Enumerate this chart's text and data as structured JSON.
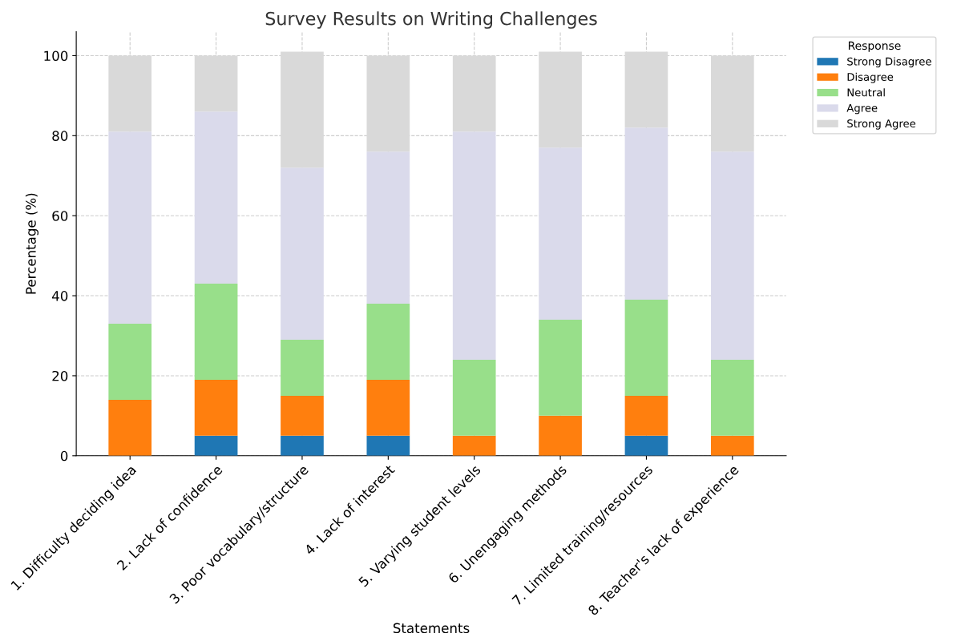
{
  "chart_data": {
    "type": "bar",
    "stacked": true,
    "title": "Survey Results on Writing Challenges",
    "xlabel": "Statements",
    "ylabel": "Percentage (%)",
    "categories": [
      "1. Difficulty deciding idea",
      "2. Lack of confidence",
      "3. Poor vocabulary/structure",
      "4. Lack of interest",
      "5. Varying student levels",
      "6. Unengaging methods",
      "7. Limited training/resources",
      "8. Teacher's lack of experience"
    ],
    "series": [
      {
        "name": "Strong Disagree",
        "color": "#1f77b4",
        "values": [
          0,
          5,
          5,
          5,
          0,
          0,
          5,
          0
        ]
      },
      {
        "name": "Disagree",
        "color": "#ff7f0e",
        "values": [
          14,
          14,
          10,
          14,
          5,
          10,
          10,
          5
        ]
      },
      {
        "name": "Neutral",
        "color": "#98df8a",
        "values": [
          19,
          24,
          14,
          19,
          19,
          24,
          24,
          19
        ]
      },
      {
        "name": "Agree",
        "color": "#dadaeb",
        "values": [
          48,
          43,
          43,
          38,
          57,
          43,
          43,
          52
        ]
      },
      {
        "name": "Strong Agree",
        "color": "#d9d9d9",
        "values": [
          19,
          14,
          29,
          24,
          19,
          24,
          19,
          24
        ]
      }
    ],
    "legend_title": "Response",
    "legend": "top right",
    "grid": true,
    "ylim": [
      0,
      106
    ],
    "yticks": [
      0,
      20,
      40,
      60,
      80,
      100
    ]
  }
}
